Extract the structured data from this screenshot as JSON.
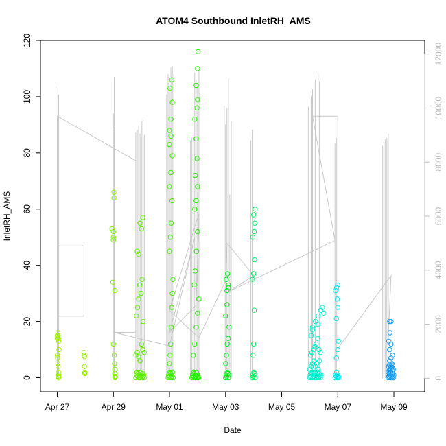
{
  "chart_data": {
    "type": "scatter",
    "title": "ATOM4 Southbound InletRH_AMS",
    "xlabel": "Date",
    "ylabel": "InletRH_AMS",
    "x_range": [
      -0.6,
      13.1
    ],
    "y_range": [
      -5,
      120
    ],
    "x_ticks": [
      {
        "label": "Apr 27",
        "value": 0
      },
      {
        "label": "Apr 29",
        "value": 2
      },
      {
        "label": "May 01",
        "value": 4
      },
      {
        "label": "May 03",
        "value": 6
      },
      {
        "label": "May 05",
        "value": 8
      },
      {
        "label": "May 07",
        "value": 10
      },
      {
        "label": "May 09",
        "value": 12
      }
    ],
    "y_ticks": [
      {
        "label": "0",
        "value": 0
      },
      {
        "label": "20",
        "value": 20
      },
      {
        "label": "40",
        "value": 40
      },
      {
        "label": "60",
        "value": 60
      },
      {
        "label": "80",
        "value": 80
      },
      {
        "label": "100",
        "value": 100
      },
      {
        "label": "120",
        "value": 120
      }
    ],
    "right_axis": {
      "range": [
        -500,
        12500
      ],
      "ticks": [
        {
          "label": "0",
          "value": 0
        },
        {
          "label": "2000",
          "value": 2000
        },
        {
          "label": "4000",
          "value": 4000
        },
        {
          "label": "6000",
          "value": 6000
        },
        {
          "label": "8000",
          "value": 8000
        },
        {
          "label": "10000",
          "value": 10000
        },
        {
          "label": "12000",
          "value": 12000
        }
      ]
    },
    "right_spikes": [
      {
        "x": 0.0,
        "v": 4900
      },
      {
        "x": 0.02,
        "v": 10800
      },
      {
        "x": 0.05,
        "v": 10500
      },
      {
        "x": 2.0,
        "v": 9800
      },
      {
        "x": 2.03,
        "v": 11150
      },
      {
        "x": 2.05,
        "v": 9300
      },
      {
        "x": 2.8,
        "v": 9100
      },
      {
        "x": 2.85,
        "v": 9200
      },
      {
        "x": 2.9,
        "v": 9350
      },
      {
        "x": 2.95,
        "v": 9050
      },
      {
        "x": 3.0,
        "v": 9500
      },
      {
        "x": 3.05,
        "v": 9550
      },
      {
        "x": 3.1,
        "v": 9000
      },
      {
        "x": 3.9,
        "v": 10500
      },
      {
        "x": 3.95,
        "v": 11250
      },
      {
        "x": 4.0,
        "v": 10800
      },
      {
        "x": 4.05,
        "v": 11500
      },
      {
        "x": 4.1,
        "v": 11550
      },
      {
        "x": 4.15,
        "v": 11250
      },
      {
        "x": 4.75,
        "v": 8800
      },
      {
        "x": 4.8,
        "v": 8900
      },
      {
        "x": 4.85,
        "v": 9000
      },
      {
        "x": 4.9,
        "v": 11300
      },
      {
        "x": 4.95,
        "v": 11050
      },
      {
        "x": 5.0,
        "v": 10900
      },
      {
        "x": 5.05,
        "v": 11350
      },
      {
        "x": 5.95,
        "v": 10100
      },
      {
        "x": 6.0,
        "v": 9400
      },
      {
        "x": 6.05,
        "v": 10000
      },
      {
        "x": 6.1,
        "v": 11100
      },
      {
        "x": 6.15,
        "v": 6800
      },
      {
        "x": 6.2,
        "v": 9500
      },
      {
        "x": 6.9,
        "v": 8800
      },
      {
        "x": 6.95,
        "v": 9200
      },
      {
        "x": 8.95,
        "v": 10050
      },
      {
        "x": 9.05,
        "v": 10450
      },
      {
        "x": 9.1,
        "v": 10700
      },
      {
        "x": 9.15,
        "v": 10950
      },
      {
        "x": 9.2,
        "v": 11050
      },
      {
        "x": 9.3,
        "v": 11300
      },
      {
        "x": 9.35,
        "v": 11000
      },
      {
        "x": 9.9,
        "v": 8700
      },
      {
        "x": 9.95,
        "v": 8900
      },
      {
        "x": 11.6,
        "v": 8600
      },
      {
        "x": 11.65,
        "v": 8750
      },
      {
        "x": 11.7,
        "v": 8850
      },
      {
        "x": 11.75,
        "v": 8900
      },
      {
        "x": 11.8,
        "v": 9050
      }
    ],
    "right_trace": [
      [
        0.0,
        4900
      ],
      [
        0.95,
        4900
      ],
      [
        0.95,
        2300
      ],
      [
        0.0,
        2300
      ],
      [
        0.0,
        9700
      ],
      [
        2.8,
        8050
      ],
      [
        2.8,
        1700
      ],
      [
        2.0,
        1700
      ],
      [
        4.0,
        1200
      ],
      [
        4.9,
        5200
      ],
      [
        4.0,
        1700
      ],
      [
        4.95,
        2700
      ],
      [
        5.05,
        6100
      ],
      [
        4.0,
        2500
      ],
      [
        5.05,
        1500
      ],
      [
        6.0,
        3600
      ],
      [
        6.05,
        5000
      ],
      [
        7.0,
        3800
      ],
      [
        6.1,
        3200
      ],
      [
        9.9,
        5100
      ],
      [
        9.1,
        9700
      ],
      [
        10.0,
        9700
      ],
      [
        10.0,
        1100
      ],
      [
        11.9,
        3800
      ],
      [
        11.8,
        1500
      ]
    ],
    "series": [
      {
        "x": [
          0.0,
          0.0,
          0.02,
          0.03,
          0.04,
          0.05,
          0.06,
          0.0,
          0.01,
          0.02,
          0.03,
          0.04,
          0.05,
          0.03,
          0.04,
          0.05
        ],
        "y": [
          15,
          14,
          16,
          15,
          14,
          13,
          10,
          8,
          7,
          5,
          4,
          2,
          1,
          0.5,
          0,
          0.2
        ],
        "color": "#a0f000"
      },
      {
        "x": [
          0.95,
          0.95,
          0.97,
          0.97,
          0.98,
          0.98
        ],
        "y": [
          9,
          8,
          7.5,
          4,
          2,
          1.5
        ],
        "color": "#98f000"
      },
      {
        "x": [
          1.95,
          2.0,
          2.0,
          2.0,
          2.02,
          2.02,
          2.0,
          2.03,
          2.04,
          2.05,
          2.05,
          2.06,
          2.06,
          1.98,
          2.05
        ],
        "y": [
          53,
          52,
          50,
          49,
          66,
          64,
          12,
          8,
          5,
          3,
          1.5,
          0.5,
          0,
          34,
          31
        ],
        "color": "#7ef000"
      },
      {
        "x": [
          2.8,
          2.82,
          2.84,
          2.86,
          2.88,
          2.9,
          2.92,
          2.94,
          2.96,
          2.98,
          3.0,
          3.02,
          3.04,
          3.06,
          3.08,
          3.1,
          2.8,
          2.85,
          2.9,
          2.95,
          3.0,
          3.05,
          3.1,
          2.82,
          2.86,
          2.9,
          2.94,
          2.98,
          3.02,
          3.06,
          2.85,
          2.9,
          2.95,
          3.0,
          3.05
        ],
        "y": [
          0,
          1,
          2,
          0.5,
          1.5,
          0,
          1,
          0,
          2,
          0.5,
          1,
          0,
          1.5,
          0.5,
          1,
          0,
          8,
          9,
          7.5,
          6,
          12,
          10,
          9,
          22,
          25,
          28,
          33,
          30,
          35,
          20,
          45,
          44,
          55,
          53,
          57
        ],
        "color": "#5ef000"
      },
      {
        "x": [
          3.95,
          3.97,
          3.99,
          4.01,
          4.03,
          4.05,
          4.07,
          4.09,
          4.11,
          4.13,
          4.0,
          4.02,
          4.04,
          4.06,
          4.08,
          4.1,
          4.12,
          4.0,
          4.03,
          4.06,
          4.09,
          4.0,
          4.05,
          4.1,
          4.0,
          4.05,
          4.1,
          4.02,
          4.08,
          4.0,
          4.05
        ],
        "y": [
          0,
          1,
          0.5,
          2,
          1.5,
          0,
          1,
          0.5,
          2,
          0,
          5,
          8,
          12,
          18,
          25,
          30,
          35,
          45,
          50,
          55,
          63,
          68,
          73,
          79,
          83,
          86,
          98,
          103,
          106,
          88,
          92
        ],
        "color": "#3ef000"
      },
      {
        "x": [
          4.8,
          4.82,
          4.84,
          4.86,
          4.88,
          4.9,
          4.92,
          4.94,
          4.96,
          4.98,
          5.0,
          5.02,
          5.04,
          4.85,
          4.9,
          4.95,
          5.0,
          5.05,
          4.88,
          4.92,
          4.96,
          5.0,
          4.9,
          4.95,
          5.0,
          4.92,
          4.98,
          4.95,
          4.9,
          4.98,
          5.0,
          4.95,
          5.0,
          5.02
        ],
        "y": [
          0,
          1,
          0.5,
          2,
          1.5,
          0,
          1,
          0.5,
          2,
          0,
          1,
          0.5,
          0,
          8,
          12,
          18,
          23,
          28,
          33,
          38,
          45,
          52,
          60,
          63,
          68,
          72,
          78,
          85,
          92,
          96,
          99,
          104,
          110,
          116
        ],
        "color": "#22f000"
      },
      {
        "x": [
          6.0,
          6.02,
          6.04,
          6.06,
          6.08,
          6.1,
          6.12,
          6.0,
          6.03,
          6.06,
          6.09,
          6.12,
          6.0,
          6.05,
          6.1,
          6.02,
          6.07,
          6.1,
          6.05
        ],
        "y": [
          0,
          1,
          0.5,
          2,
          1.5,
          0,
          1,
          5,
          8,
          12,
          14,
          18,
          22,
          26,
          32,
          35,
          37,
          33,
          31
        ],
        "color": "#00f020"
      },
      {
        "x": [
          6.95,
          6.97,
          6.99,
          7.01,
          7.03,
          7.05,
          6.98,
          7.0,
          7.02,
          6.96,
          7.0,
          7.03,
          6.97,
          7.02,
          7.04,
          7.0,
          7.05
        ],
        "y": [
          0,
          1,
          0.5,
          2,
          1.5,
          0,
          8,
          12,
          24,
          35,
          37,
          42,
          50,
          52,
          55,
          58,
          60
        ],
        "color": "#00f060"
      },
      {
        "x": [
          9.0,
          9.02,
          9.04,
          9.06,
          9.08,
          9.1,
          9.12,
          9.14,
          9.16,
          9.18,
          9.2,
          9.22,
          9.24,
          9.26,
          9.28,
          9.3,
          9.32,
          9.34,
          9.36,
          9.38,
          9.4,
          9.0,
          9.05,
          9.1,
          9.15,
          9.2,
          9.25,
          9.3,
          9.35,
          9.03,
          9.08,
          9.13,
          9.18,
          9.23,
          9.28,
          9.33,
          9.38,
          9.05,
          9.1,
          9.2,
          9.3,
          9.4,
          9.45,
          9.5,
          9.1,
          9.3
        ],
        "y": [
          0,
          1,
          0.5,
          2,
          1.5,
          0,
          1,
          0.5,
          2,
          0,
          1,
          1.5,
          0,
          0.5,
          2,
          1,
          0,
          1.5,
          0.5,
          0,
          1,
          3,
          4,
          5,
          6,
          4,
          5,
          3,
          6,
          8,
          9,
          10,
          11,
          12,
          14,
          10,
          9,
          15,
          18,
          20,
          22,
          24,
          25,
          23,
          17,
          19
        ],
        "color": "#00f0d0"
      },
      {
        "x": [
          9.9,
          9.92,
          9.94,
          9.96,
          9.98,
          10.0,
          10.02,
          10.04,
          9.95,
          10.0,
          10.02,
          9.95,
          10.0,
          9.98,
          9.92,
          9.96,
          10.0
        ],
        "y": [
          0,
          1,
          0.5,
          2,
          0,
          1,
          0.5,
          0,
          7,
          10,
          13,
          21,
          25,
          28,
          31,
          32,
          33
        ],
        "color": "#00e8f0"
      },
      {
        "x": [
          11.8,
          11.82,
          11.84,
          11.86,
          11.88,
          11.9,
          11.92,
          11.94,
          11.96,
          11.98,
          12.0,
          11.8,
          11.83,
          11.86,
          11.89,
          11.92,
          11.95,
          11.98,
          11.81,
          11.84,
          11.87,
          11.9,
          11.93,
          11.96,
          11.85,
          11.9,
          11.95,
          11.85,
          11.9,
          11.82,
          11.86,
          11.9,
          11.85
        ],
        "y": [
          0,
          0.5,
          1,
          0,
          1.5,
          0.5,
          0,
          1,
          0.5,
          0,
          1,
          2,
          2.5,
          3,
          2,
          3.5,
          2.5,
          3,
          4,
          4.5,
          3.5,
          4,
          5,
          4.5,
          6,
          7,
          8,
          10,
          12,
          13,
          16,
          20,
          20
        ],
        "color": "#1a9ff0"
      }
    ]
  }
}
